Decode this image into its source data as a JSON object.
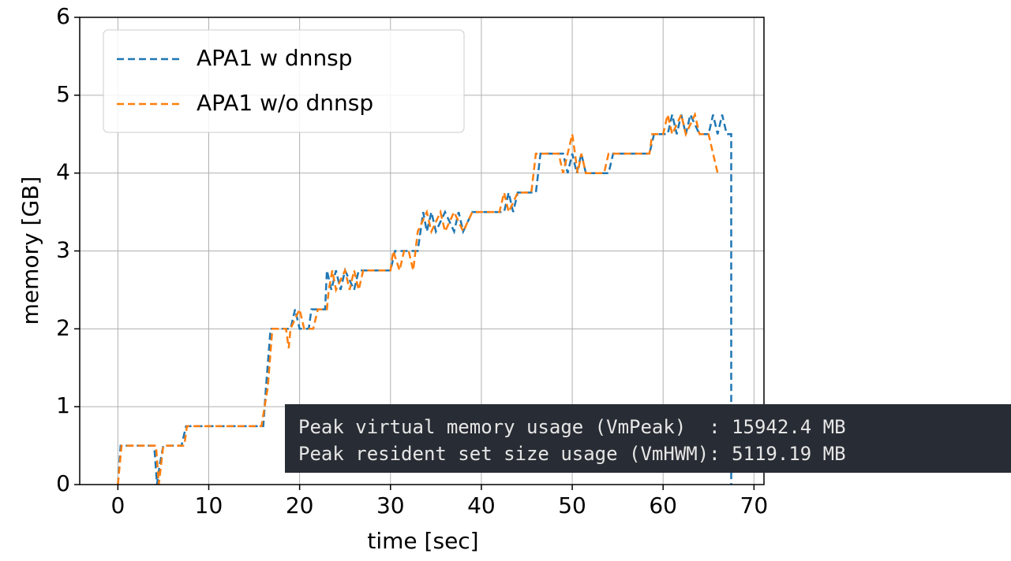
{
  "chart_data": {
    "type": "line",
    "xlabel": "time [sec]",
    "ylabel": "memory [GB]",
    "xlim": [
      -4.2,
      71.1
    ],
    "ylim": [
      0,
      6
    ],
    "xticks": [
      0,
      10,
      20,
      30,
      40,
      50,
      60,
      70
    ],
    "yticks": [
      0,
      1,
      2,
      3,
      4,
      5,
      6
    ],
    "grid": true,
    "legend": "upper left",
    "linestyle": "dashed",
    "series": [
      {
        "name": "APA1 w dnnsp",
        "color": "#1f77b4",
        "x": [
          0,
          0.3,
          4,
          4.3,
          4.6,
          5,
          7,
          7.5,
          16,
          16.3,
          16.8,
          19,
          19.5,
          20,
          21,
          21.3,
          22.8,
          23,
          23.5,
          24,
          24.5,
          25,
          26,
          26.5,
          30,
          30.5,
          33,
          33.3,
          33.6,
          34,
          34.5,
          35,
          36,
          37,
          37.5,
          38,
          39,
          40,
          42.5,
          43,
          43.5,
          44,
          46,
          46.5,
          49,
          49.5,
          50,
          50.5,
          51,
          51.5,
          54,
          54.5,
          58.5,
          59,
          60.5,
          61,
          61.5,
          62,
          62.5,
          63,
          64,
          65,
          65.5,
          66,
          66.5,
          67,
          67.5,
          67.5
        ],
        "values": [
          0,
          0.5,
          0.5,
          0,
          0.25,
          0.5,
          0.5,
          0.75,
          0.75,
          1.25,
          2,
          2,
          2.25,
          2,
          2,
          2.25,
          2.25,
          2.75,
          2.5,
          2.75,
          2.5,
          2.75,
          2.5,
          2.75,
          2.75,
          3,
          3,
          3.25,
          3.5,
          3.25,
          3.5,
          3.25,
          3.5,
          3.25,
          3.5,
          3.25,
          3.5,
          3.5,
          3.5,
          3.75,
          3.5,
          3.75,
          3.75,
          4.25,
          4.25,
          4,
          4.25,
          4,
          4.25,
          4,
          4,
          4.25,
          4.25,
          4.5,
          4.5,
          4.75,
          4.5,
          4.75,
          4.5,
          4.75,
          4.5,
          4.5,
          4.75,
          4.5,
          4.75,
          4.5,
          4.5,
          0
        ]
      },
      {
        "name": "APA1 w/o dnnsp",
        "color": "#ff7f0e",
        "x": [
          0,
          0.4,
          4.2,
          4.5,
          5,
          7.3,
          7.6,
          15.8,
          16.5,
          17,
          18.5,
          18.8,
          19,
          20,
          20.5,
          21.5,
          22,
          23,
          23.2,
          23.6,
          24,
          25,
          25.5,
          26,
          26.5,
          27,
          30,
          30.3,
          31,
          31.5,
          32,
          32.5,
          33,
          34,
          34.5,
          35.5,
          36,
          37,
          38,
          39,
          40,
          42,
          42.5,
          43,
          44,
          45.5,
          46,
          48.5,
          49,
          49.5,
          50,
          50.3,
          50.6,
          51,
          51.5,
          53.5,
          54,
          58.5,
          58.8,
          60,
          60.5,
          61,
          62,
          62.5,
          63.5,
          64,
          65,
          65.5,
          66
        ],
        "values": [
          0,
          0.5,
          0.5,
          0,
          0.5,
          0.5,
          0.75,
          0.75,
          1.25,
          2,
          2,
          1.75,
          2,
          2.25,
          2,
          2,
          2.25,
          2.25,
          2.5,
          2.75,
          2.5,
          2.75,
          2.5,
          2.75,
          2.5,
          2.75,
          2.75,
          3,
          2.75,
          3,
          3,
          2.75,
          3.25,
          3.5,
          3.25,
          3.5,
          3.25,
          3.5,
          3.25,
          3.5,
          3.5,
          3.5,
          3.75,
          3.5,
          3.75,
          3.75,
          4.25,
          4.25,
          4,
          4.25,
          4.5,
          4.25,
          4,
          4.25,
          4,
          4,
          4.25,
          4.25,
          4.5,
          4.5,
          4.75,
          4.5,
          4.75,
          4.5,
          4.75,
          4.5,
          4.5,
          4.25,
          4
        ]
      }
    ],
    "annotations": [
      "Peak virtual memory usage (VmPeak)  : 15942.4 MB",
      "Peak resident set size usage (VmHWM): 5119.19 MB"
    ]
  }
}
